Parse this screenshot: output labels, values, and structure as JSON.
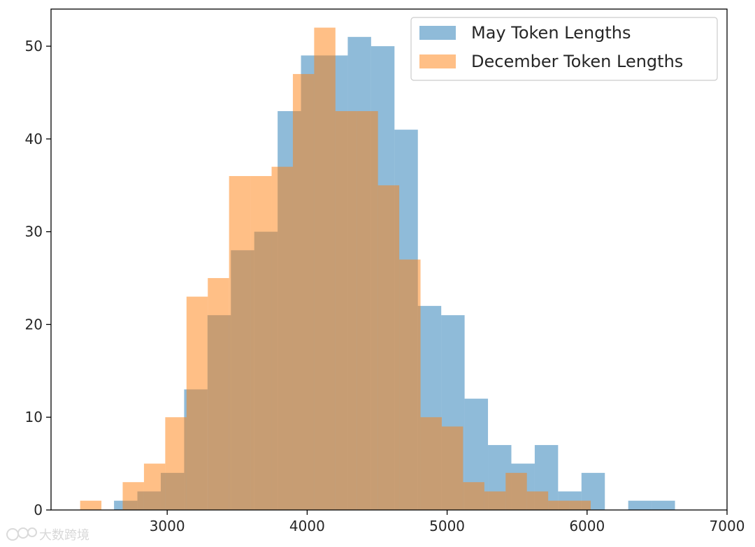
{
  "chart_data": {
    "type": "histogram",
    "title": "",
    "xlabel": "",
    "ylabel": "",
    "xlim": [
      2170,
      7000
    ],
    "ylim": [
      0,
      54
    ],
    "xticks": [
      3000,
      4000,
      5000,
      6000,
      7000
    ],
    "yticks": [
      0,
      10,
      20,
      30,
      40,
      50
    ],
    "grid": false,
    "legend": "top-right",
    "series": [
      {
        "name": "May Token Lengths",
        "color": "#1f77b4",
        "alpha": 0.5,
        "bin_start": 2620,
        "bin_width": 167,
        "counts": [
          1,
          2,
          4,
          13,
          21,
          28,
          30,
          43,
          49,
          49,
          51,
          50,
          41,
          22,
          21,
          12,
          7,
          5,
          7,
          2,
          4,
          0,
          1,
          1
        ]
      },
      {
        "name": "December Token Lengths",
        "color": "#ff7f0e",
        "alpha": 0.5,
        "bin_start": 2378,
        "bin_width": 152,
        "counts": [
          1,
          0,
          3,
          5,
          10,
          23,
          25,
          36,
          36,
          37,
          47,
          52,
          43,
          43,
          35,
          27,
          10,
          9,
          3,
          2,
          4,
          2,
          1,
          1
        ]
      }
    ]
  },
  "watermark": {
    "text": "大数跨境",
    "icon": "logo-mark-icon"
  }
}
